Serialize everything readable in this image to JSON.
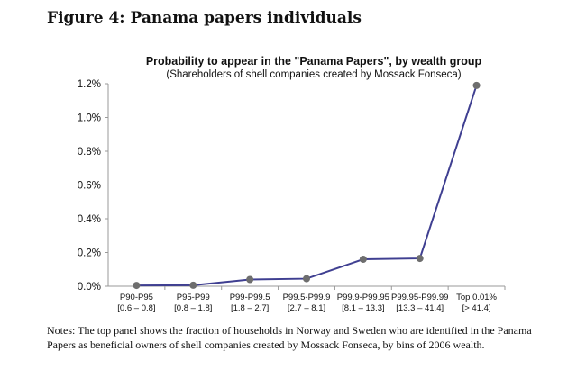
{
  "figure": {
    "heading": "Figure 4:  Panama papers individuals"
  },
  "chart_data": {
    "type": "line",
    "title": "Probability to appear in the \"Panama Papers\", by wealth group",
    "subtitle": "(Shareholders of shell companies created by Mossack Fonseca)",
    "xlabel": "",
    "ylabel": "",
    "categories": [
      [
        "P90-P95",
        "[0.6 – 0.8]"
      ],
      [
        "P95-P99",
        "[0.8 – 1.8]"
      ],
      [
        "P99-P99.5",
        "[1.8 – 2.7]"
      ],
      [
        "P99.5-P99.9",
        "[2.7 – 8.1]"
      ],
      [
        "P99.9-P99.95",
        "[8.1 – 13.3]"
      ],
      [
        "P99.95-P99.99",
        "[13.3 – 41.4]"
      ],
      [
        "Top 0.01%",
        "[> 41.4]"
      ]
    ],
    "values": [
      0.005,
      0.006,
      0.04,
      0.045,
      0.16,
      0.165,
      1.19
    ],
    "y_unit": "%",
    "ylim": [
      0,
      1.2
    ],
    "yticks": [
      "0.0%",
      "0.2%",
      "0.4%",
      "0.6%",
      "0.8%",
      "1.0%",
      "1.2%"
    ],
    "ytick_values": [
      0,
      0.2,
      0.4,
      0.6,
      0.8,
      1.0,
      1.2
    ],
    "grid": false,
    "legend": "none",
    "colors": {
      "line": "#3f3f91",
      "marker": "#6e6e6e",
      "axis": "#999999",
      "text": "#111111"
    }
  },
  "notes": "Notes: The top panel shows the fraction of households in Norway and Sweden who are identified in the Panama Papers as beneficial owners of shell companies created by Mossack Fonseca, by bins of 2006 wealth."
}
